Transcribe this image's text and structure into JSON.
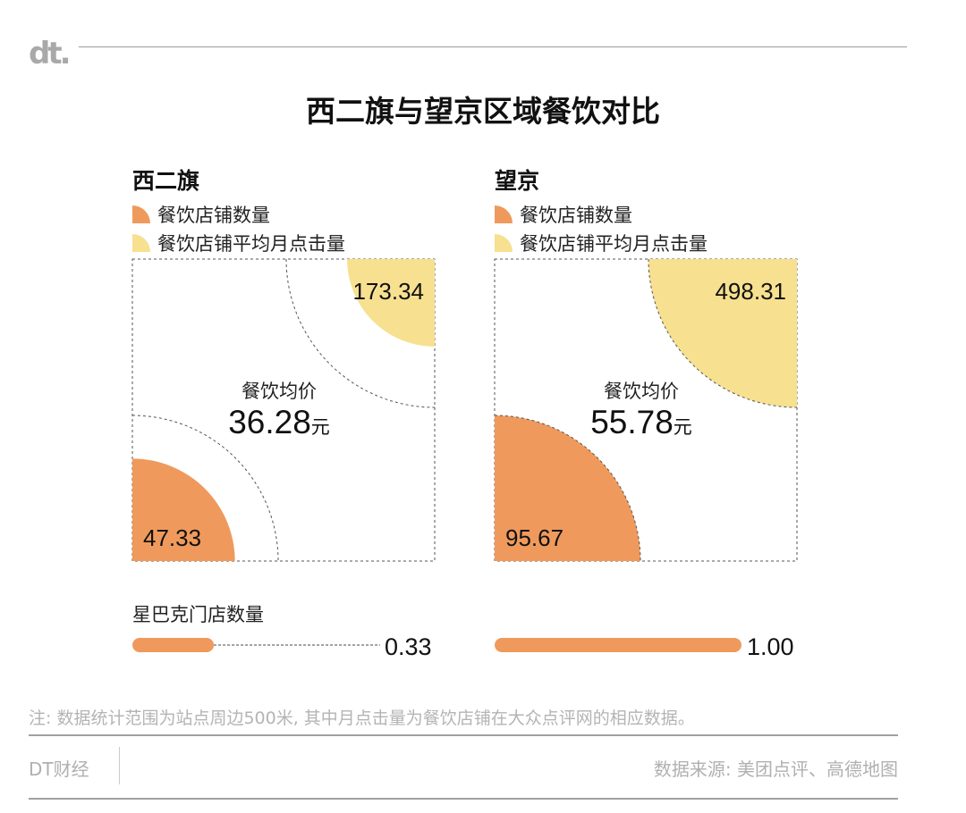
{
  "logo": "dt.",
  "title": "西二旗与望京区域餐饮对比",
  "legend": {
    "count": "餐饮店铺数量",
    "clicks": "餐饮店铺平均月点击量"
  },
  "colors": {
    "count": "#ef9a5c",
    "clicks": "#f7e08f"
  },
  "chart_data": {
    "type": "quarter-circle area comparison",
    "title": "西二旗与望京区域餐饮对比",
    "regions": [
      {
        "name": "西二旗",
        "store_count": 47.33,
        "avg_monthly_clicks": 173.34,
        "avg_price_label": "餐饮均价",
        "avg_price": "36.28",
        "unit": "元",
        "starbucks": 0.33
      },
      {
        "name": "望京",
        "store_count": 95.67,
        "avg_monthly_clicks": 498.31,
        "avg_price_label": "餐饮均价",
        "avg_price": "55.78",
        "unit": "元",
        "starbucks": 1.0
      }
    ],
    "starbucks_label": "星巴克门店数量",
    "starbucks_labels": [
      "0.33",
      "1.00"
    ]
  },
  "note": "注: 数据统计范围为站点周边500米, 其中月点击量为餐饮店铺在大众点评网的相应数据。",
  "footer": {
    "brand": "DT财经",
    "source": "数据来源: 美团点评、高德地图"
  }
}
